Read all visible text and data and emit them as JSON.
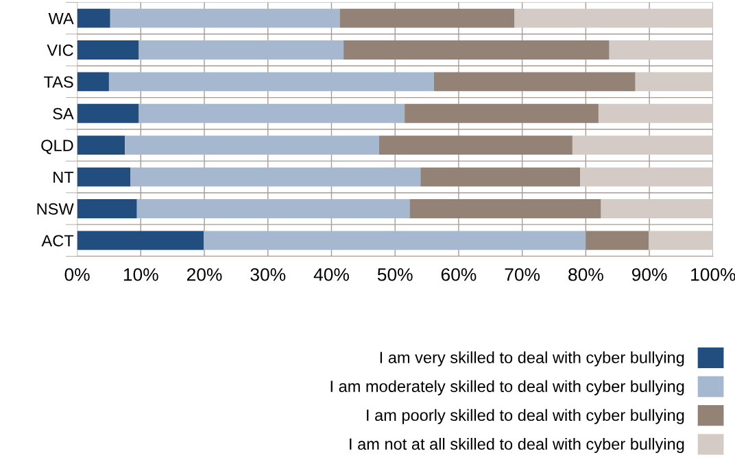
{
  "chart_data": {
    "type": "bar",
    "orientation": "horizontal",
    "stacked": true,
    "categories": [
      "WA",
      "VIC",
      "TAS",
      "SA",
      "QLD",
      "NT",
      "NSW",
      "ACT"
    ],
    "series": [
      {
        "name": "I am very skilled to deal with cyber bullying",
        "color": "#214e7f",
        "values": [
          5.2,
          9.7,
          5.0,
          9.7,
          7.5,
          8.4,
          9.4,
          19.9
        ]
      },
      {
        "name": "I am moderately skilled to deal with cyber bullying",
        "color": "#a5b8cf",
        "values": [
          36.1,
          32.2,
          51.1,
          41.8,
          40.0,
          45.6,
          42.9,
          60.1
        ]
      },
      {
        "name": "I am poorly skilled to deal with cyber bullying",
        "color": "#948276",
        "values": [
          27.5,
          41.8,
          31.7,
          30.5,
          30.4,
          25.1,
          30.1,
          9.9
        ]
      },
      {
        "name": "I am not at all skilled to deal with cyber bullying",
        "color": "#d5cbc6",
        "values": [
          31.2,
          16.3,
          12.2,
          18.0,
          22.1,
          20.9,
          17.6,
          10.1
        ]
      }
    ],
    "xlim": [
      0,
      100
    ],
    "xticks": [
      {
        "value": 0,
        "label": "0%"
      },
      {
        "value": 10,
        "label": "10%"
      },
      {
        "value": 20,
        "label": "20%"
      },
      {
        "value": 30,
        "label": "30%"
      },
      {
        "value": 40,
        "label": "40%"
      },
      {
        "value": 50,
        "label": "50%"
      },
      {
        "value": 60,
        "label": "60%"
      },
      {
        "value": 70,
        "label": "70%"
      },
      {
        "value": 80,
        "label": "80%"
      },
      {
        "value": 90,
        "label": "90%"
      },
      {
        "value": 100,
        "label": "100%"
      }
    ],
    "grid": true,
    "legend": "bottom right"
  }
}
